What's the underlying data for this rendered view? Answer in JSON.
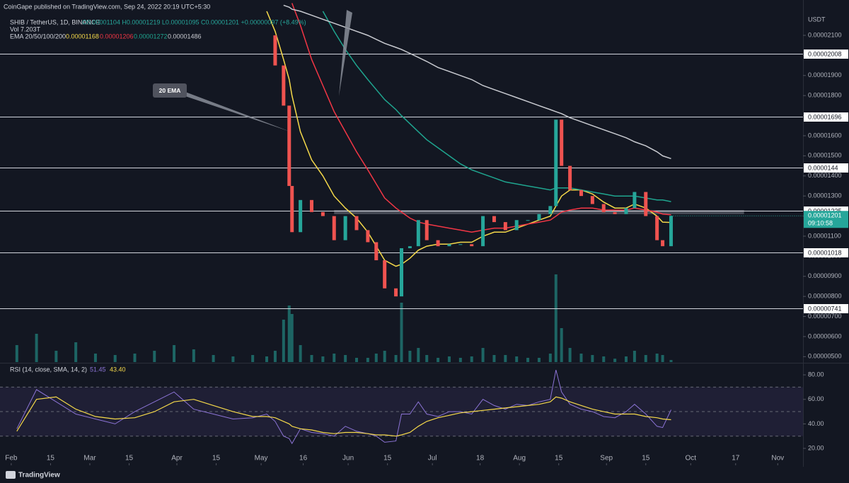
{
  "header": {
    "publisher": "CoinGape published on TradingView.com, Sep 24, 2022 20:19 UTC+5:30",
    "symbol": "SHIB / TetherUS, 1D, BINANCE",
    "ohlc": "O0.00001104 H0.00001219 L0.00001095 C0.00001201 +0.00000097 (+8.49%)",
    "volume": "Vol 7.203T",
    "ema_label": "EMA 20/50/100/200",
    "rsi_label": "RSI (14, close, SMA, 14, 2)",
    "rsi_sma_value": "43.40",
    "currency": "USDT",
    "countdown": "09:10:58",
    "brand": "TradingView"
  },
  "chart_data": {
    "type": "candlestick",
    "x": [
      "2022-02-03",
      "2022-02-10",
      "2022-02-17",
      "2022-02-24",
      "2022-03-03",
      "2022-03-10",
      "2022-03-17",
      "2022-03-24",
      "2022-03-31",
      "2022-04-07",
      "2022-04-14",
      "2022-04-21",
      "2022-04-28",
      "2022-05-03",
      "2022-05-06",
      "2022-05-09",
      "2022-05-11",
      "2022-05-12",
      "2022-05-15",
      "2022-05-19",
      "2022-05-23",
      "2022-05-27",
      "2022-05-31",
      "2022-06-04",
      "2022-06-08",
      "2022-06-11",
      "2022-06-14",
      "2022-06-18",
      "2022-06-20",
      "2022-06-23",
      "2022-06-26",
      "2022-06-29",
      "2022-07-03",
      "2022-07-07",
      "2022-07-11",
      "2022-07-15",
      "2022-07-19",
      "2022-07-23",
      "2022-07-27",
      "2022-07-31",
      "2022-08-04",
      "2022-08-08",
      "2022-08-12",
      "2022-08-14",
      "2022-08-16",
      "2022-08-19",
      "2022-08-23",
      "2022-08-27",
      "2022-08-31",
      "2022-09-04",
      "2022-09-08",
      "2022-09-11",
      "2022-09-15",
      "2022-09-19",
      "2022-09-21",
      "2022-09-24"
    ],
    "price": {
      "up_color": "#26a69a",
      "down_color": "#ef5350",
      "values": [
        null,
        null,
        null,
        null,
        null,
        null,
        null,
        null,
        null,
        null,
        null,
        null,
        null,
        2.1e-05,
        1.95e-05,
        1.75e-05,
        1.35e-05,
        1.12e-05,
        1.28e-05,
        1.22e-05,
        1.2e-05,
        1.08e-05,
        1.2e-05,
        1.13e-05,
        1.07e-05,
        9.8e-06,
        8.4e-06,
        8e-06,
        1.04e-05,
        1.05e-05,
        1.18e-05,
        1.08e-05,
        1.05e-05,
        1.06e-05,
        1.06e-05,
        1.05e-05,
        1.2e-05,
        1.17e-05,
        1.13e-05,
        1.18e-05,
        1.18e-05,
        1.21e-05,
        1.25e-05,
        1.68e-05,
        1.45e-05,
        1.33e-05,
        1.3e-05,
        1.26e-05,
        1.22e-05,
        1.21e-05,
        1.24e-05,
        1.32e-05,
        1.2e-05,
        1.08e-05,
        1.05e-05,
        1.201e-05
      ]
    },
    "ema": [
      {
        "color": "#f5d94a",
        "values": [
          null,
          null,
          null,
          null,
          null,
          null,
          null,
          null,
          null,
          null,
          null,
          null,
          null,
          2.22e-05,
          2.12e-05,
          1.98e-05,
          1.88e-05,
          1.8e-05,
          1.62e-05,
          1.48e-05,
          1.4e-05,
          1.3e-05,
          1.24e-05,
          1.19e-05,
          1.12e-05,
          1.05e-05,
          9.8e-06,
          9.5e-06,
          9.6e-06,
          9.9e-06,
          1.03e-05,
          1.05e-05,
          1.06e-05,
          1.06e-05,
          1.07e-05,
          1.07e-05,
          1.1e-05,
          1.12e-05,
          1.12e-05,
          1.14e-05,
          1.16e-05,
          1.18e-05,
          1.2e-05,
          1.25e-05,
          1.3e-05,
          1.33e-05,
          1.33e-05,
          1.31e-05,
          1.27e-05,
          1.24e-05,
          1.24e-05,
          1.26e-05,
          1.24e-05,
          1.2e-05,
          1.17e-05,
          1.168e-05
        ]
      },
      {
        "color": "#f23645",
        "values": [
          null,
          null,
          null,
          null,
          null,
          null,
          null,
          null,
          null,
          null,
          null,
          null,
          null,
          null,
          null,
          null,
          null,
          2.26e-05,
          2.15e-05,
          1.98e-05,
          1.85e-05,
          1.72e-05,
          1.62e-05,
          1.52e-05,
          1.43e-05,
          1.36e-05,
          1.29e-05,
          1.24e-05,
          1.22e-05,
          1.19e-05,
          1.17e-05,
          1.16e-05,
          1.15e-05,
          1.14e-05,
          1.13e-05,
          1.12e-05,
          1.13e-05,
          1.14e-05,
          1.14e-05,
          1.15e-05,
          1.16e-05,
          1.17e-05,
          1.18e-05,
          1.2e-05,
          1.22e-05,
          1.23e-05,
          1.24e-05,
          1.24e-05,
          1.23e-05,
          1.23e-05,
          1.23e-05,
          1.24e-05,
          1.23e-05,
          1.22e-05,
          1.21e-05,
          1.206e-05
        ]
      },
      {
        "color": "#1fa58f",
        "values": [
          null,
          null,
          null,
          null,
          null,
          null,
          null,
          null,
          null,
          null,
          null,
          null,
          null,
          null,
          null,
          null,
          null,
          null,
          null,
          null,
          2.22e-05,
          2.12e-05,
          2.03e-05,
          1.95e-05,
          1.88e-05,
          1.83e-05,
          1.78e-05,
          1.73e-05,
          1.7e-05,
          1.66e-05,
          1.62e-05,
          1.58e-05,
          1.54e-05,
          1.5e-05,
          1.46e-05,
          1.43e-05,
          1.41e-05,
          1.39e-05,
          1.37e-05,
          1.36e-05,
          1.35e-05,
          1.34e-05,
          1.33e-05,
          1.34e-05,
          1.34e-05,
          1.34e-05,
          1.33e-05,
          1.32e-05,
          1.31e-05,
          1.3e-05,
          1.3e-05,
          1.3e-05,
          1.29e-05,
          1.28e-05,
          1.28e-05,
          1.272e-05
        ]
      },
      {
        "color": "#c8cad0",
        "values": [
          null,
          null,
          null,
          null,
          null,
          null,
          null,
          null,
          null,
          null,
          null,
          null,
          null,
          null,
          null,
          2.25e-05,
          2.24e-05,
          2.23e-05,
          2.22e-05,
          2.2e-05,
          2.18e-05,
          2.16e-05,
          2.14e-05,
          2.12e-05,
          2.1e-05,
          2.08e-05,
          2.06e-05,
          2.04e-05,
          2.03e-05,
          2.01e-05,
          1.99e-05,
          1.97e-05,
          1.94e-05,
          1.92e-05,
          1.9e-05,
          1.88e-05,
          1.85e-05,
          1.83e-05,
          1.81e-05,
          1.79e-05,
          1.77e-05,
          1.75e-05,
          1.73e-05,
          1.72e-05,
          1.71e-05,
          1.69e-05,
          1.67e-05,
          1.65e-05,
          1.63e-05,
          1.61e-05,
          1.59e-05,
          1.57e-05,
          1.55e-05,
          1.52e-05,
          1.5e-05,
          1.486e-05
        ]
      }
    ],
    "volume": {
      "color": "#26a69a",
      "ylim": [
        0,
        420
      ],
      "values": [
        60,
        100,
        40,
        70,
        30,
        25,
        30,
        40,
        60,
        45,
        25,
        20,
        25,
        20,
        40,
        150,
        200,
        170,
        60,
        25,
        20,
        30,
        25,
        15,
        15,
        30,
        40,
        25,
        210,
        40,
        50,
        25,
        15,
        20,
        15,
        20,
        50,
        25,
        25,
        20,
        15,
        15,
        30,
        310,
        120,
        50,
        30,
        25,
        20,
        12,
        20,
        40,
        25,
        30,
        25,
        7.203
      ]
    },
    "rsi": {
      "color": "#8c74d6",
      "sma_color": "#f5d94a",
      "ylim": [
        7.9,
        88.7
      ],
      "bands": [
        30,
        50,
        70
      ],
      "yticks": [
        {
          "value": 80,
          "label": "80.00"
        },
        {
          "value": 60,
          "label": "60.00"
        },
        {
          "value": 40,
          "label": "40.00"
        },
        {
          "value": 20,
          "label": "20.00"
        }
      ],
      "values": [
        36,
        68,
        58,
        48,
        44,
        40,
        50,
        58,
        66,
        52,
        48,
        44,
        45,
        48,
        42,
        30,
        28,
        24,
        36,
        33,
        32,
        30,
        38,
        34,
        32,
        30,
        25,
        26,
        48,
        48,
        58,
        48,
        46,
        50,
        50,
        48,
        60,
        55,
        52,
        56,
        55,
        58,
        60,
        84,
        66,
        56,
        52,
        50,
        46,
        45,
        50,
        56,
        48,
        38,
        37,
        51.45
      ],
      "sma": [
        34,
        60,
        62,
        52,
        46,
        44,
        45,
        50,
        58,
        60,
        55,
        50,
        46,
        46,
        45,
        42,
        40,
        38,
        36,
        35,
        33,
        32,
        33,
        33,
        32,
        31,
        31,
        30,
        31,
        33,
        38,
        42,
        45,
        47,
        49,
        50,
        51,
        52,
        53,
        54,
        55,
        56,
        58,
        62,
        61,
        58,
        55,
        52,
        50,
        48,
        48,
        48,
        46,
        45,
        44,
        43.4
      ]
    },
    "levels": [
      2.008e-05,
      1.696e-05,
      1.44e-05,
      1.225e-05,
      1.018e-05,
      7.41e-06
    ],
    "zone": {
      "range": [
        1.21e-05,
        1.23e-05
      ],
      "x": [
        "2022-05-27",
        "2022-10-20"
      ]
    },
    "annotations": [
      {
        "text": "20 EMA"
      }
    ],
    "xlim": [
      "2022-01-28",
      "2022-11-10"
    ],
    "xticks": [
      {
        "value": "2022-02-01",
        "label": "Feb"
      },
      {
        "value": "2022-02-15",
        "label": "15"
      },
      {
        "value": "2022-03-01",
        "label": "Mar"
      },
      {
        "value": "2022-03-15",
        "label": "15"
      },
      {
        "value": "2022-04-01",
        "label": "Apr"
      },
      {
        "value": "2022-04-15",
        "label": "15"
      },
      {
        "value": "2022-05-01",
        "label": "May"
      },
      {
        "value": "2022-05-16",
        "label": "16"
      },
      {
        "value": "2022-06-01",
        "label": "Jun"
      },
      {
        "value": "2022-06-15",
        "label": "15"
      },
      {
        "value": "2022-07-01",
        "label": "Jul"
      },
      {
        "value": "2022-07-18",
        "label": "18"
      },
      {
        "value": "2022-08-01",
        "label": "Aug"
      },
      {
        "value": "2022-08-15",
        "label": "15"
      },
      {
        "value": "2022-09-01",
        "label": "Sep"
      },
      {
        "value": "2022-09-15",
        "label": "15"
      },
      {
        "value": "2022-10-01",
        "label": "Oct"
      },
      {
        "value": "2022-10-17",
        "label": "17"
      },
      {
        "value": "2022-11-01",
        "label": "Nov"
      }
    ],
    "ylim": [
      4.73e-06,
      2.276e-05
    ],
    "yticks": [
      {
        "value": 2.1e-05,
        "label": "0.00002100"
      },
      {
        "value": 2e-05,
        "label": "0.00002000"
      },
      {
        "value": 1.9e-05,
        "label": "0.00001900"
      },
      {
        "value": 1.8e-05,
        "label": "0.00001800"
      },
      {
        "value": 1.7e-05,
        "label": "0.00001700"
      },
      {
        "value": 1.6e-05,
        "label": "0.00001600"
      },
      {
        "value": 1.5e-05,
        "label": "0.00001500"
      },
      {
        "value": 1.4e-05,
        "label": "0.00001400"
      },
      {
        "value": 1.3e-05,
        "label": "0.00001300"
      },
      {
        "value": 1.2e-05,
        "label": "0.00001200"
      },
      {
        "value": 1.1e-05,
        "label": "0.00001100"
      },
      {
        "value": 1e-05,
        "label": "0.00001000"
      },
      {
        "value": 9e-06,
        "label": "0.00000900"
      },
      {
        "value": 8e-06,
        "label": "0.00000800"
      },
      {
        "value": 7e-06,
        "label": "0.00000700"
      },
      {
        "value": 6e-06,
        "label": "0.00000600"
      },
      {
        "value": 5e-06,
        "label": "0.00000500"
      }
    ],
    "grid": false
  }
}
